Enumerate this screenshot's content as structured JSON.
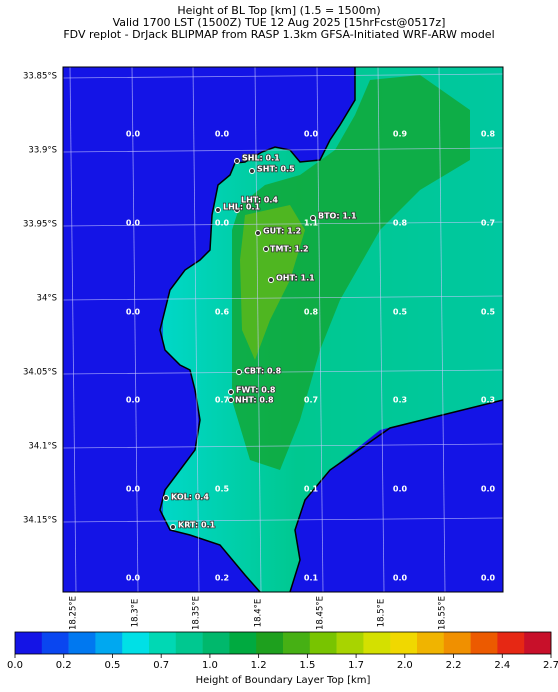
{
  "header": {
    "lines": [
      "Height of BL Top [km] (1.5 = 1500m)",
      "Valid 1700 LST (1500Z) TUE 12 Aug 2025 [15hrFcst@0517z]",
      "FDV replot - DrJack BLIPMAP from RASP 1.3km GFSA-Initiated WRF-ARW model"
    ]
  },
  "map": {
    "lat_labels": [
      "33.85°S",
      "33.9°S",
      "33.95°S",
      "34°S",
      "34.05°S",
      "34.1°S",
      "34.15°S"
    ],
    "lon_labels": [
      "18.25°E",
      "18.3°E",
      "18.35°E",
      "18.4°E",
      "18.45°E",
      "18.5°E",
      "18.55°E"
    ],
    "grid_values": [
      [
        "0.0",
        "0.0",
        "0.0",
        "0.9",
        "0.8"
      ],
      [
        "0.0",
        "0.0",
        "1.1",
        "0.8",
        "0.7"
      ],
      [
        "0.0",
        "0.6",
        "0.8",
        "0.5",
        "0.5"
      ],
      [
        "0.0",
        "0.7",
        "0.7",
        "0.3",
        "0.3"
      ],
      [
        "0.0",
        "0.5",
        "0.1",
        "0.0",
        "0.0"
      ],
      [
        "0.0",
        "0.2",
        "0.1",
        "0.0",
        "0.0"
      ]
    ],
    "stations": [
      "SHL: 0.1",
      "SHT: 0.5",
      "LHT: 0.4",
      "LHL: 0.1",
      "GUT: 1.2",
      "BTO: 1.1",
      "TMT: 1.2",
      "OHT: 1.1",
      "CBT: 0.8",
      "FWT: 0.8",
      "NHT: 0.8",
      "KOL: 0.4",
      "KRT: 0.1"
    ]
  },
  "colorbar": {
    "ticks": [
      "0.0",
      "0.2",
      "0.5",
      "0.7",
      "1.0",
      "1.2",
      "1.5",
      "1.7",
      "2.0",
      "2.2",
      "2.4",
      "2.7"
    ],
    "colors": [
      "#1414e6",
      "#0a46f0",
      "#0078f0",
      "#00a8f0",
      "#00e0e6",
      "#00d8b4",
      "#00c890",
      "#00b86c",
      "#00aa40",
      "#1ea01e",
      "#46b014",
      "#78c400",
      "#a8d400",
      "#d4e000",
      "#f0d800",
      "#f0b400",
      "#f09000",
      "#ec5a00",
      "#e62814",
      "#c8102a"
    ],
    "label": "Height of Boundary Layer Top [km]"
  }
}
